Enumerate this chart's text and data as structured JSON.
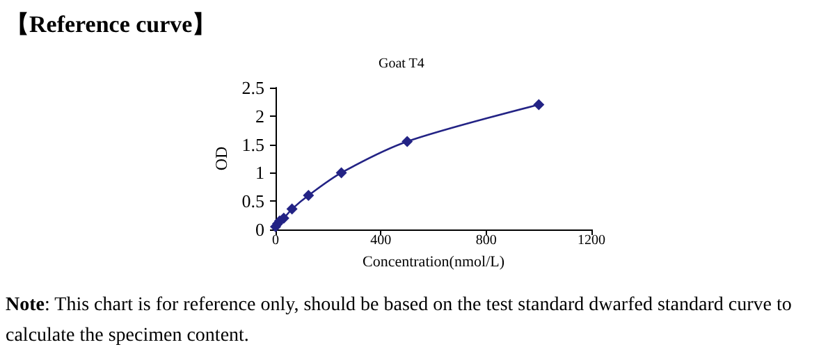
{
  "chart_data": {
    "type": "line",
    "title": "【Reference curve】",
    "subtitle": "Goat T4",
    "xlabel": "Concentration(nmol/L)",
    "ylabel": "OD",
    "annotations": [
      "Note: This chart is for reference only, should be based on the test standard dwarfed standard curve to calculate the specimen content."
    ],
    "x": [
      0,
      7.8,
      15.6,
      31.25,
      62.5,
      125,
      250,
      500,
      1000
    ],
    "series": [
      {
        "color": "#232385",
        "values": [
          0.05,
          0.1,
          0.15,
          0.2,
          0.36,
          0.6,
          1.0,
          1.55,
          2.2
        ]
      }
    ],
    "xlim": [
      0,
      1200
    ],
    "xticks": [
      0,
      400,
      800,
      1200
    ],
    "ylim": [
      0,
      2.5
    ],
    "yticks": [
      0,
      0.5,
      1,
      1.5,
      2,
      2.5
    ],
    "marker": "diamond",
    "line_style": "solid"
  }
}
